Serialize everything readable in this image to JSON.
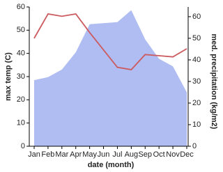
{
  "chart_data": {
    "type": "line",
    "x_label": "date (month)",
    "y_label": "max temp (C)",
    "y2_label": "med. precipitation (kg/m2)",
    "categories": [
      "Jan",
      "Feb",
      "Mar",
      "Apr",
      "May",
      "Jun",
      "Jul",
      "Aug",
      "Sep",
      "Oct",
      "Nov",
      "Dec"
    ],
    "series": [
      {
        "name": "max temp",
        "color": "#cc5a5e",
        "values": [
          46.5,
          57,
          56,
          57,
          49,
          41.5,
          34,
          33,
          39.5,
          39,
          38.5,
          42
        ]
      },
      {
        "name": "med. precipitation",
        "color": "#b0bdf2",
        "axis": "y2",
        "area": true,
        "values": [
          30.6,
          32,
          35.5,
          43.5,
          56.5,
          57,
          57.5,
          63,
          49.5,
          40.5,
          37,
          25
        ]
      }
    ],
    "ylim": [
      0,
      60
    ],
    "yticks": [
      0,
      10,
      20,
      30,
      40,
      50,
      60
    ],
    "y2lim": [
      0,
      64.5
    ],
    "y2ticks": [
      0,
      10,
      20,
      30,
      40,
      50,
      60
    ]
  }
}
